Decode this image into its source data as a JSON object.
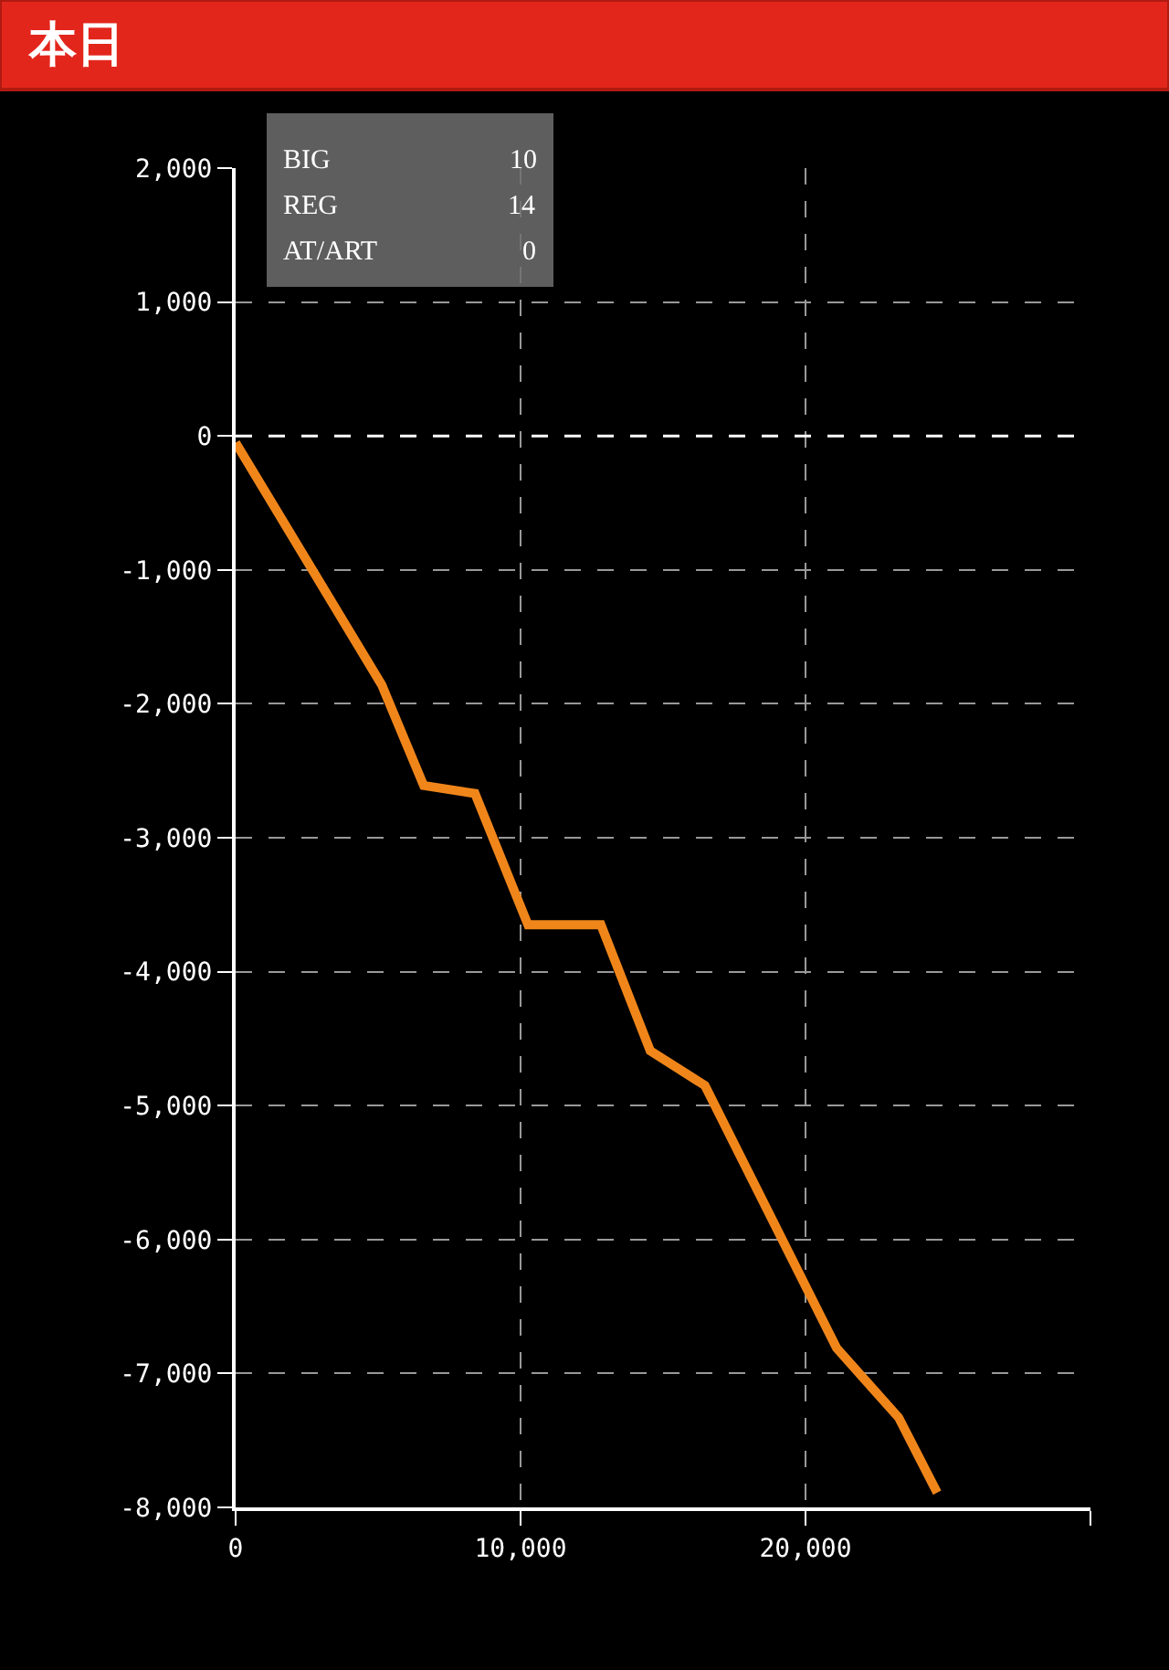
{
  "chart_data": {
    "type": "line",
    "title": "本日",
    "x": [
      0,
      5130,
      6600,
      8400,
      10260,
      12820,
      14550,
      16470,
      21090,
      23270,
      24620
    ],
    "series": [
      {
        "color": "#f0861a",
        "values": [
          -50,
          -1860,
          -2610,
          -2670,
          -3650,
          -3650,
          -4590,
          -4850,
          -6810,
          -7330,
          -7890
        ]
      }
    ],
    "xlim": [
      0,
      30000
    ],
    "xticks": [
      0,
      {
        "value": 10000,
        "label": "10,000"
      },
      {
        "value": 20000,
        "label": "20,000"
      },
      {
        "value": 30000,
        "label": null
      }
    ],
    "ylim": [
      -8000,
      2000
    ],
    "yticks": [
      {
        "value": -8000,
        "label": "-8,000"
      },
      {
        "value": -7000,
        "label": "-7,000"
      },
      {
        "value": -6000,
        "label": "-6,000"
      },
      {
        "value": -5000,
        "label": "-5,000"
      },
      {
        "value": -4000,
        "label": "-4,000"
      },
      {
        "value": -3000,
        "label": "-3,000"
      },
      {
        "value": -2000,
        "label": "-2,000"
      },
      {
        "value": -1000,
        "label": "-1,000"
      },
      0,
      {
        "value": 1000,
        "label": "1,000"
      },
      {
        "value": 2000,
        "label": "2,000"
      }
    ],
    "grid": true,
    "line_style": "solid",
    "marker": "none",
    "ref_lines": [
      {
        "axis": "y",
        "value": 0,
        "color": "#ffffff",
        "line_style": "dashed"
      }
    ],
    "annotations": [
      "BIG",
      "10",
      "REG",
      "14",
      "AT/ART",
      "0"
    ]
  }
}
